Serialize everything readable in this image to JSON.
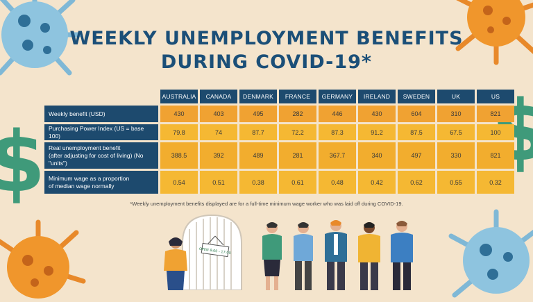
{
  "title": {
    "line1": "WEEKLY UNEMPLOYMENT BENEFITS",
    "line2": "DURING COVID-19*"
  },
  "table": {
    "columns": [
      "AUSTRALIA",
      "CANADA",
      "DENMARK",
      "FRANCE",
      "GERMANY",
      "IRELAND",
      "SWEDEN",
      "UK",
      "US"
    ],
    "rows": [
      {
        "label": "Weekly benefit (USD)",
        "values": [
          "430",
          "403",
          "495",
          "282",
          "446",
          "430",
          "604",
          "310",
          "821"
        ]
      },
      {
        "label": "Purchasing Power Index (US = base 100)",
        "values": [
          "79.8",
          "74",
          "87.7",
          "72.2",
          "87.3",
          "91.2",
          "87.5",
          "67.5",
          "100"
        ]
      },
      {
        "label": "Real unemployment benefit",
        "label2": "(after adjusting for cost of living) (No \"units\")",
        "values": [
          "388.5",
          "392",
          "489",
          "281",
          "367.7",
          "340",
          "497",
          "330",
          "821"
        ]
      },
      {
        "label": "Minimum wage as a proportion",
        "label2": "of median wage normally",
        "values": [
          "0.54",
          "0.51",
          "0.38",
          "0.61",
          "0.48",
          "0.42",
          "0.62",
          "0.55",
          "0.32"
        ]
      }
    ]
  },
  "footnote": "*Weekly unemployment benefits displayed are for a full-time minimum wage worker who was laid off during COVID-19.",
  "door_sign": "OPEN 8:00 - 17:00",
  "icons": [
    "virus-icon",
    "dollar-sign-icon",
    "person-icon",
    "door-icon"
  ],
  "colors": {
    "title": "#1b4f78",
    "header": "#1d4a6e",
    "orange_row": "#f0a232",
    "yellow_row": "#f5b833",
    "background": "#f4e4cc"
  }
}
